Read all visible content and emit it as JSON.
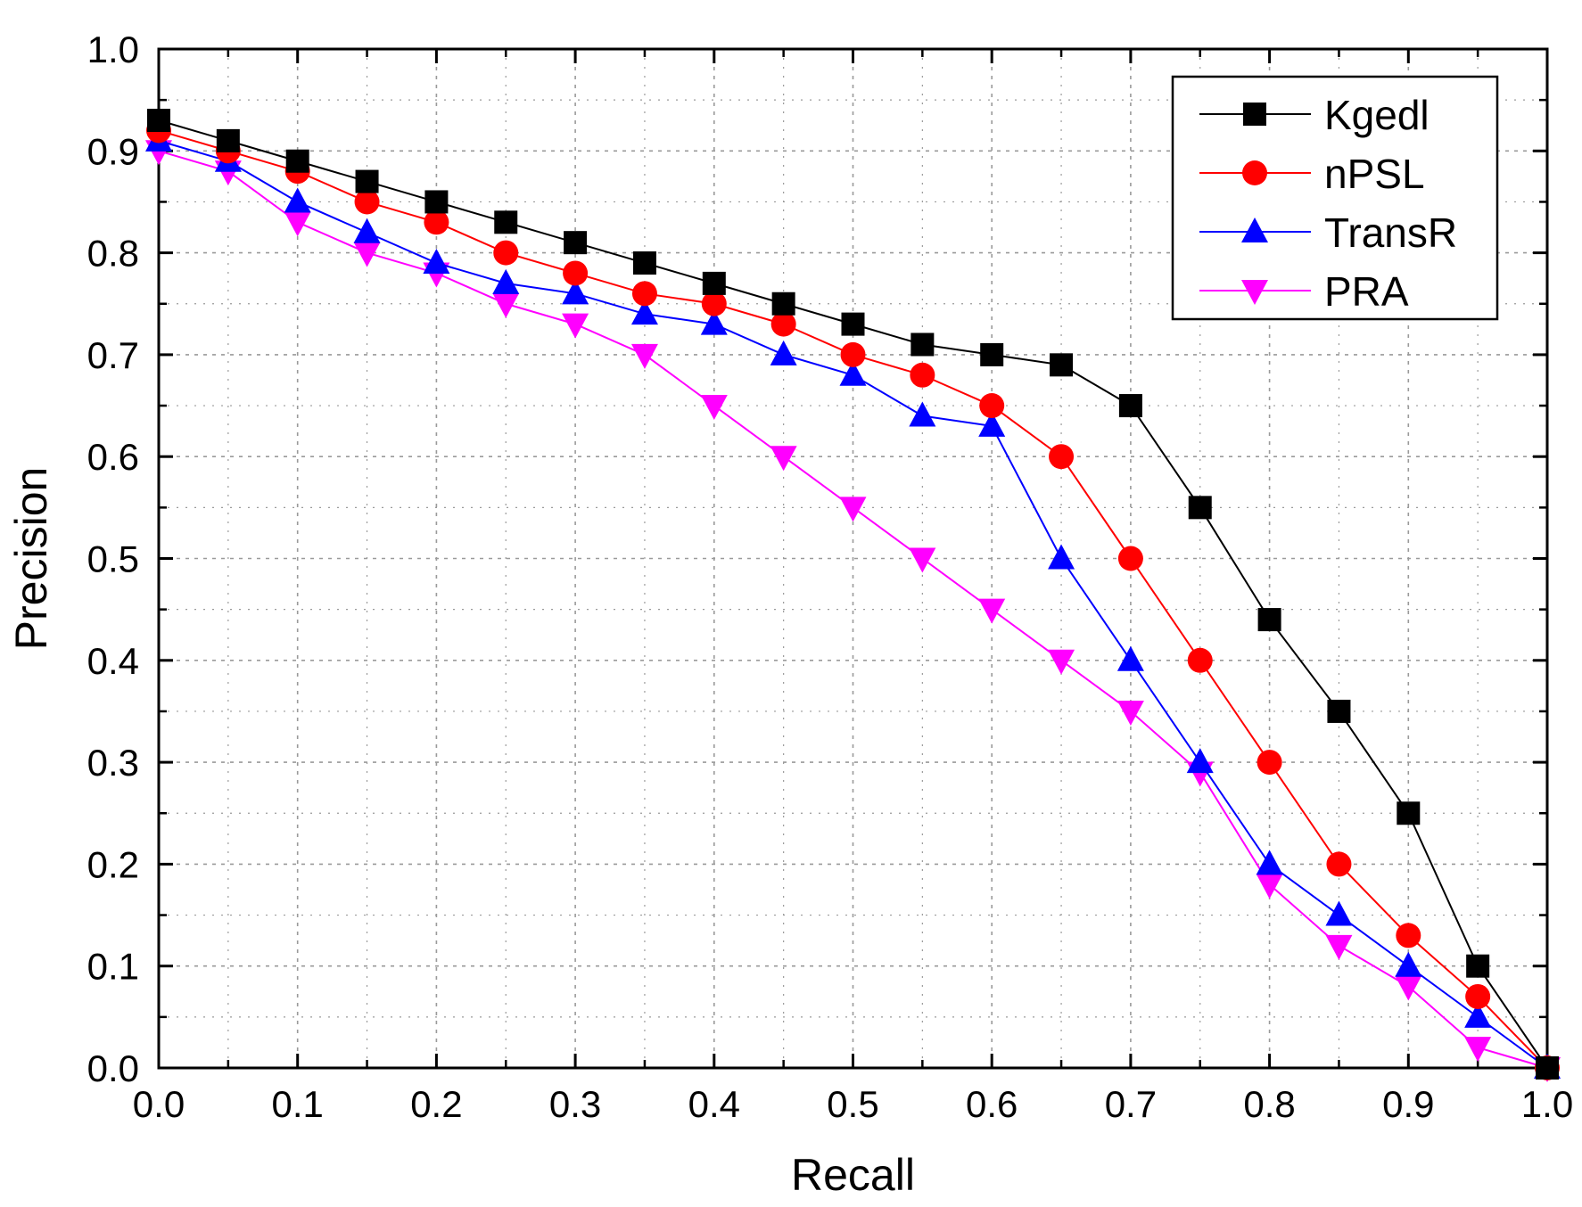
{
  "chart_data": {
    "type": "line",
    "title": "",
    "xlabel": "Recall",
    "ylabel": "Precision",
    "xlim": [
      0.0,
      1.0
    ],
    "ylim": [
      0.0,
      1.0
    ],
    "grid": true,
    "legend_position": "top-right",
    "x_ticks": [
      "0.0",
      "0.1",
      "0.2",
      "0.3",
      "0.4",
      "0.5",
      "0.6",
      "0.7",
      "0.8",
      "0.9",
      "1.0"
    ],
    "y_ticks": [
      "0.0",
      "0.1",
      "0.2",
      "0.3",
      "0.4",
      "0.5",
      "0.6",
      "0.7",
      "0.8",
      "0.9",
      "1.0"
    ],
    "x": [
      0.0,
      0.05,
      0.1,
      0.15,
      0.2,
      0.25,
      0.3,
      0.35,
      0.4,
      0.45,
      0.5,
      0.55,
      0.6,
      0.65,
      0.7,
      0.75,
      0.8,
      0.85,
      0.9,
      0.95,
      1.0
    ],
    "series": [
      {
        "name": "Kgedl",
        "color": "#000000",
        "marker": "square",
        "values": [
          0.93,
          0.91,
          0.89,
          0.87,
          0.85,
          0.83,
          0.81,
          0.79,
          0.77,
          0.75,
          0.73,
          0.71,
          0.7,
          0.69,
          0.65,
          0.55,
          0.44,
          0.35,
          0.25,
          0.1,
          0.0
        ]
      },
      {
        "name": "nPSL",
        "color": "#ff0000",
        "marker": "circle",
        "values": [
          0.92,
          0.9,
          0.88,
          0.85,
          0.83,
          0.8,
          0.78,
          0.76,
          0.75,
          0.73,
          0.7,
          0.68,
          0.65,
          0.6,
          0.5,
          0.4,
          0.3,
          0.2,
          0.13,
          0.07,
          0.0
        ]
      },
      {
        "name": "TransR",
        "color": "#0000ff",
        "marker": "triangle-up",
        "values": [
          0.91,
          0.89,
          0.85,
          0.82,
          0.79,
          0.77,
          0.76,
          0.74,
          0.73,
          0.7,
          0.68,
          0.64,
          0.63,
          0.5,
          0.4,
          0.3,
          0.2,
          0.15,
          0.1,
          0.05,
          0.0
        ]
      },
      {
        "name": "PRA",
        "color": "#ff00ff",
        "marker": "triangle-down",
        "values": [
          0.9,
          0.88,
          0.83,
          0.8,
          0.78,
          0.75,
          0.73,
          0.7,
          0.65,
          0.6,
          0.55,
          0.5,
          0.45,
          0.4,
          0.35,
          0.29,
          0.18,
          0.12,
          0.08,
          0.02,
          0.0
        ]
      }
    ]
  }
}
